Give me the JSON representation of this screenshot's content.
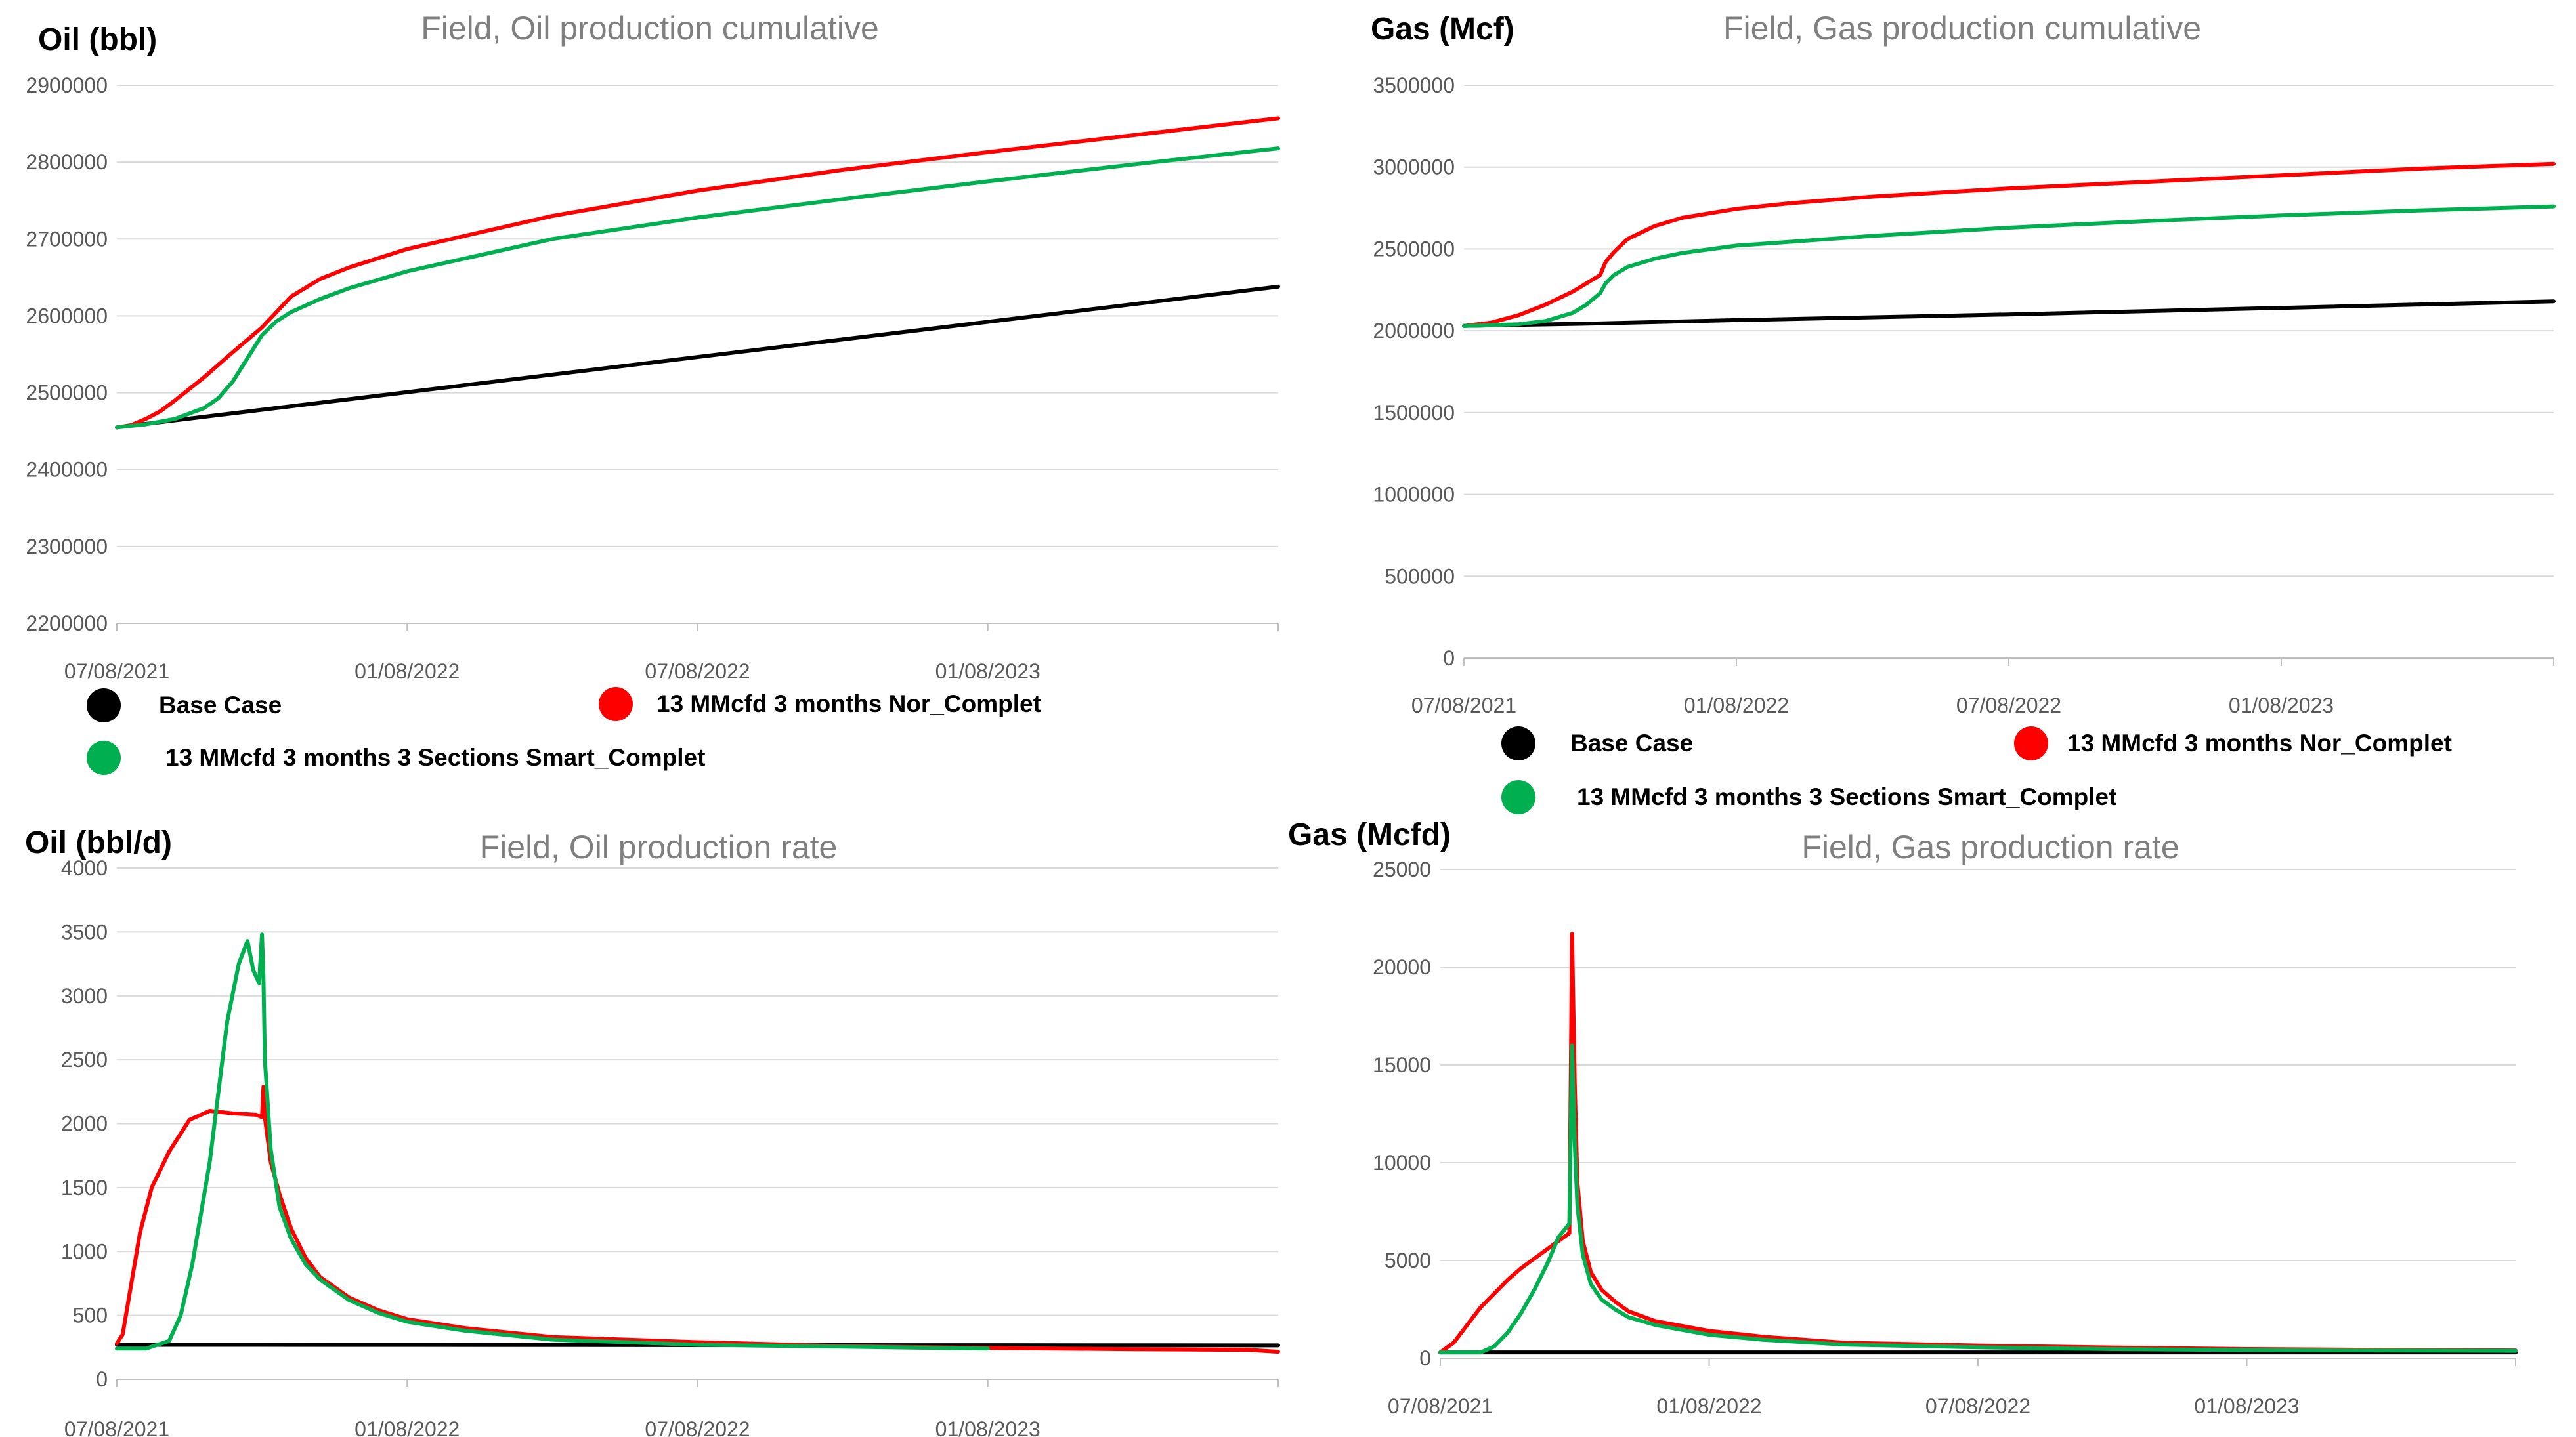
{
  "chart_data": [
    {
      "type": "line",
      "title": "Field, Oil production cumulative",
      "ylabel": "Oil (bbl)",
      "xlabel": "",
      "ylim": [
        2200000,
        2900000
      ],
      "yticks": [
        "2900000",
        "2800000",
        "2700000",
        "2600000",
        "2500000",
        "2400000",
        "2300000",
        "2200000"
      ],
      "ytick_values": [
        2900000,
        2800000,
        2700000,
        2600000,
        2500000,
        2400000,
        2300000,
        2200000
      ],
      "xlim": [
        0,
        4
      ],
      "xticks": [
        "07/08/2021",
        "01/08/2022",
        "07/08/2022",
        "01/08/2023"
      ],
      "xtick_values": [
        0,
        1,
        2,
        3
      ],
      "legend": [
        "Base Case",
        "13 MMcfd 3 months Nor_Complet",
        "13 MMcfd 3 months 3 Sections  Smart_Complet"
      ],
      "series": [
        {
          "name": "Base Case",
          "color": "#000000",
          "x": [
            0,
            4
          ],
          "y": [
            2455000,
            2638000
          ]
        },
        {
          "name": "13 MMcfd 3 months Nor_Complet",
          "color": "#ff0000",
          "x": [
            0,
            0.05,
            0.1,
            0.15,
            0.2,
            0.3,
            0.4,
            0.5,
            0.55,
            0.6,
            0.7,
            0.8,
            1.0,
            1.5,
            2.0,
            2.5,
            3.0,
            3.5,
            4.0
          ],
          "y": [
            2455000,
            2458000,
            2466000,
            2476000,
            2490000,
            2520000,
            2553000,
            2585000,
            2605000,
            2625000,
            2648000,
            2663000,
            2687000,
            2730000,
            2763000,
            2790000,
            2813000,
            2835000,
            2857000
          ]
        },
        {
          "name": "13 MMcfd 3 months 3 Sections  Smart_Complet",
          "color": "#00b050",
          "x": [
            0,
            0.1,
            0.2,
            0.3,
            0.35,
            0.4,
            0.45,
            0.5,
            0.55,
            0.6,
            0.7,
            0.8,
            1.0,
            1.5,
            2.0,
            2.5,
            3.0,
            3.5,
            4.0
          ],
          "y": [
            2455000,
            2459000,
            2466000,
            2480000,
            2493000,
            2515000,
            2545000,
            2575000,
            2593000,
            2605000,
            2622000,
            2636000,
            2658000,
            2700000,
            2728000,
            2752000,
            2775000,
            2797000,
            2818000
          ]
        }
      ]
    },
    {
      "type": "line",
      "title": "Field, Gas production cumulative",
      "ylabel": "Gas (Mcf)",
      "xlabel": "",
      "ylim": [
        0,
        3500000
      ],
      "yticks": [
        "3500000",
        "3000000",
        "2500000",
        "2000000",
        "1500000",
        "1000000",
        "500000",
        "0"
      ],
      "ytick_values": [
        3500000,
        3000000,
        2500000,
        2000000,
        1500000,
        1000000,
        500000,
        0
      ],
      "xlim": [
        0,
        4
      ],
      "xticks": [
        "07/08/2021",
        "01/08/2022",
        "07/08/2022",
        "01/08/2023"
      ],
      "xtick_values": [
        0,
        1,
        2,
        3
      ],
      "legend": [
        "Base Case",
        "13 MMcfd 3 months Nor_Complet",
        "13 MMcfd 3 months 3 Sections  Smart_Complet"
      ],
      "series": [
        {
          "name": "Base Case",
          "color": "#000000",
          "x": [
            0,
            0.5,
            1.0,
            2.0,
            3.0,
            4.0
          ],
          "y": [
            2030000,
            2045000,
            2065000,
            2100000,
            2140000,
            2180000
          ]
        },
        {
          "name": "13 MMcfd 3 months Nor_Complet",
          "color": "#ff0000",
          "x": [
            0,
            0.1,
            0.2,
            0.3,
            0.4,
            0.5,
            0.52,
            0.55,
            0.6,
            0.7,
            0.8,
            1.0,
            1.2,
            1.5,
            2.0,
            2.5,
            3.0,
            3.5,
            4.0
          ],
          "y": [
            2030000,
            2050000,
            2095000,
            2160000,
            2240000,
            2340000,
            2420000,
            2480000,
            2560000,
            2640000,
            2690000,
            2745000,
            2780000,
            2820000,
            2870000,
            2910000,
            2950000,
            2990000,
            3020000
          ]
        },
        {
          "name": "13 MMcfd 3 months 3 Sections  Smart_Complet",
          "color": "#00b050",
          "x": [
            0,
            0.2,
            0.3,
            0.4,
            0.45,
            0.5,
            0.52,
            0.55,
            0.6,
            0.7,
            0.8,
            1.0,
            1.5,
            2.0,
            2.5,
            3.0,
            3.5,
            4.0
          ],
          "y": [
            2030000,
            2040000,
            2060000,
            2110000,
            2160000,
            2230000,
            2290000,
            2340000,
            2390000,
            2440000,
            2475000,
            2520000,
            2580000,
            2630000,
            2670000,
            2705000,
            2735000,
            2760000
          ]
        }
      ]
    },
    {
      "type": "line",
      "title": "Field, Oil production rate",
      "ylabel": "Oil (bbl/d)",
      "xlabel": "",
      "ylim": [
        0,
        4000
      ],
      "yticks": [
        "4000",
        "3500",
        "3000",
        "2500",
        "2000",
        "1500",
        "1000",
        "500",
        "0"
      ],
      "ytick_values": [
        4000,
        3500,
        3000,
        2500,
        2000,
        1500,
        1000,
        500,
        0
      ],
      "xlim": [
        0,
        4
      ],
      "xticks": [
        "07/08/2021",
        "01/08/2022",
        "07/08/2022",
        "01/08/2023"
      ],
      "xtick_values": [
        0,
        1,
        2,
        3
      ],
      "series": [
        {
          "name": "Base Case",
          "color": "#000000",
          "x": [
            0,
            4
          ],
          "y": [
            270,
            265
          ]
        },
        {
          "name": "13 MMcfd 3 months Nor_Complet",
          "color": "#ff0000",
          "x": [
            0,
            0.02,
            0.05,
            0.08,
            0.12,
            0.18,
            0.25,
            0.32,
            0.4,
            0.48,
            0.5,
            0.505,
            0.51,
            0.53,
            0.56,
            0.6,
            0.65,
            0.7,
            0.8,
            0.9,
            1.0,
            1.2,
            1.5,
            2.0,
            2.5,
            3.0,
            3.5,
            3.9,
            4.0
          ],
          "y": [
            280,
            350,
            750,
            1150,
            1500,
            1780,
            2030,
            2100,
            2080,
            2070,
            2050,
            2290,
            2050,
            1700,
            1450,
            1180,
            950,
            800,
            640,
            540,
            470,
            400,
            330,
            290,
            260,
            245,
            235,
            230,
            215
          ]
        },
        {
          "name": "13 MMcfd 3 months 3 Sections  Smart_Complet",
          "color": "#00b050",
          "x": [
            0,
            0.1,
            0.18,
            0.22,
            0.26,
            0.32,
            0.38,
            0.42,
            0.45,
            0.47,
            0.49,
            0.5,
            0.505,
            0.51,
            0.53,
            0.56,
            0.6,
            0.65,
            0.7,
            0.8,
            0.9,
            1.0,
            1.2,
            1.5,
            2.0,
            2.5,
            3.0
          ],
          "y": [
            240,
            240,
            300,
            500,
            900,
            1700,
            2800,
            3250,
            3430,
            3200,
            3100,
            3480,
            3150,
            2500,
            1800,
            1350,
            1100,
            900,
            780,
            620,
            520,
            450,
            380,
            310,
            270,
            255,
            240
          ]
        }
      ]
    },
    {
      "type": "line",
      "title": "Field, Gas production rate",
      "ylabel": "Gas (Mcfd)",
      "xlabel": "",
      "ylim": [
        0,
        25000
      ],
      "yticks": [
        "25000",
        "20000",
        "15000",
        "10000",
        "5000",
        "0"
      ],
      "ytick_values": [
        25000,
        20000,
        15000,
        10000,
        5000,
        0
      ],
      "xlim": [
        0,
        4
      ],
      "xticks": [
        "07/08/2021",
        "01/08/2022",
        "07/08/2022",
        "01/08/2023"
      ],
      "xtick_values": [
        0,
        1,
        2,
        3
      ],
      "series": [
        {
          "name": "Base Case",
          "color": "#000000",
          "x": [
            0,
            4
          ],
          "y": [
            300,
            300
          ]
        },
        {
          "name": "13 MMcfd 3 months Nor_Complet",
          "color": "#ff0000",
          "x": [
            0,
            0.05,
            0.1,
            0.15,
            0.2,
            0.25,
            0.3,
            0.35,
            0.4,
            0.45,
            0.48,
            0.49,
            0.5,
            0.51,
            0.53,
            0.56,
            0.6,
            0.65,
            0.7,
            0.8,
            1.0,
            1.2,
            1.5,
            2.0,
            2.5,
            3.0,
            3.5,
            4.0
          ],
          "y": [
            300,
            800,
            1700,
            2600,
            3300,
            4000,
            4600,
            5100,
            5600,
            6100,
            6400,
            21700,
            14000,
            9000,
            6000,
            4400,
            3500,
            2900,
            2400,
            1900,
            1400,
            1100,
            800,
            650,
            550,
            470,
            430,
            400
          ]
        },
        {
          "name": "13 MMcfd 3 months 3 Sections  Smart_Complet",
          "color": "#00b050",
          "x": [
            0,
            0.15,
            0.2,
            0.25,
            0.3,
            0.35,
            0.4,
            0.44,
            0.47,
            0.48,
            0.49,
            0.5,
            0.51,
            0.53,
            0.56,
            0.6,
            0.65,
            0.7,
            0.8,
            1.0,
            1.2,
            1.5,
            2.0,
            2.5,
            3.0,
            4.0
          ],
          "y": [
            300,
            300,
            600,
            1300,
            2300,
            3500,
            4900,
            6200,
            6700,
            6900,
            16000,
            11000,
            7800,
            5300,
            3800,
            3000,
            2500,
            2100,
            1700,
            1200,
            950,
            700,
            560,
            470,
            420,
            380
          ]
        }
      ]
    }
  ]
}
